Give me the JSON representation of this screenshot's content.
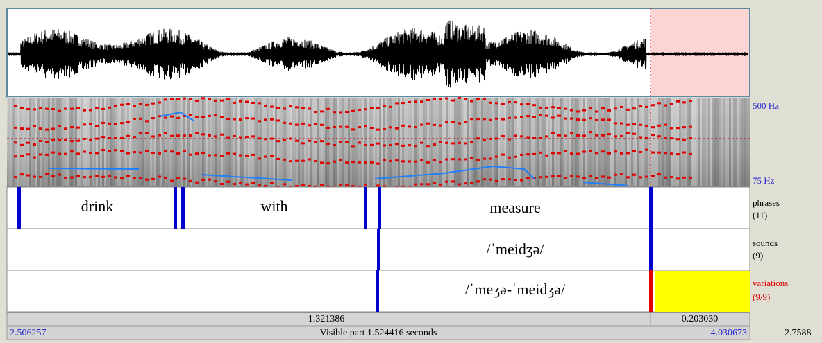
{
  "frequency_axis": {
    "top": "500 Hz",
    "bottom": "75 Hz"
  },
  "tiers": [
    {
      "name": "phrases",
      "count": "(11)",
      "intervals": [
        "drink",
        "with",
        "measure"
      ]
    },
    {
      "name": "sounds",
      "count": "(9)",
      "intervals": [
        "/ˈmeidʒə/"
      ]
    },
    {
      "name": "variations",
      "count": "(9/9)",
      "intervals": [
        "/ˈmeʒə-ˈmeidʒə/"
      ]
    }
  ],
  "status": {
    "selection_before": "1.321386",
    "selection": "0.203030",
    "window_start": "2.506257",
    "visible": "Visible part 1.524416 seconds",
    "window_end": "4.030673",
    "total": "2.7588"
  }
}
